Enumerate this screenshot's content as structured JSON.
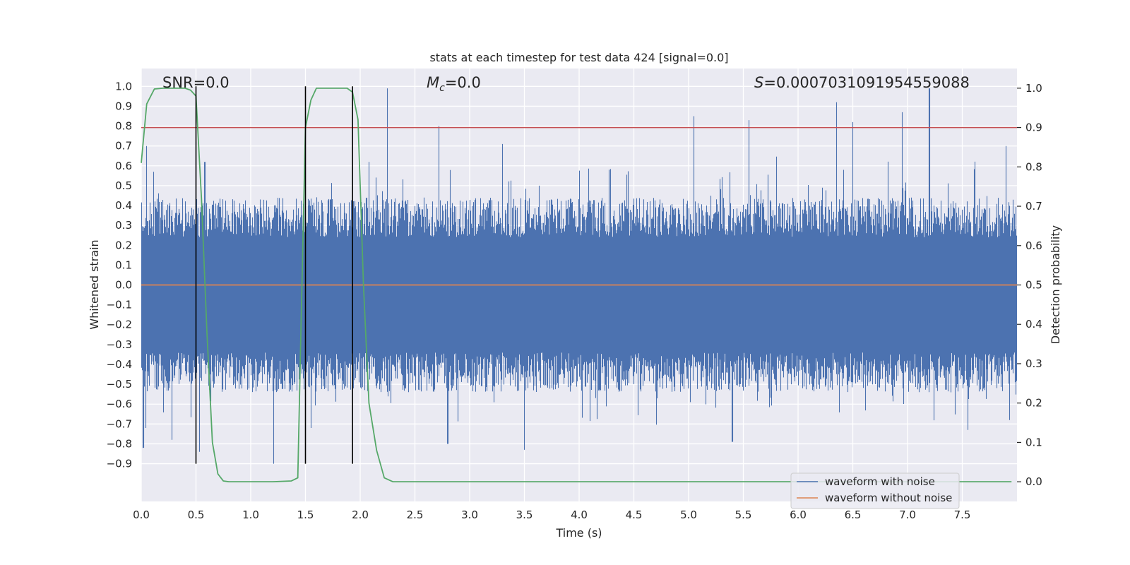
{
  "chart_data": {
    "type": "line",
    "title": "stats at each timestep for test data 424 [signal=0.0]",
    "xlabel": "Time (s)",
    "ylabel": "Whitened strain",
    "y2label": "Detection probability",
    "xlim": [
      0.0,
      8.0
    ],
    "ylim": [
      -1.09,
      1.09
    ],
    "y2lim": [
      -0.05,
      1.05
    ],
    "x_ticks": [
      "0.0",
      "0.5",
      "1.0",
      "1.5",
      "2.0",
      "2.5",
      "3.0",
      "3.5",
      "4.0",
      "4.5",
      "5.0",
      "5.5",
      "6.0",
      "6.5",
      "7.0",
      "7.5"
    ],
    "y_ticks": [
      "1.0",
      "0.9",
      "0.8",
      "0.7",
      "0.6",
      "0.5",
      "0.4",
      "0.3",
      "0.2",
      "0.1",
      "0.0",
      "-0.1",
      "-0.2",
      "-0.3",
      "-0.4",
      "-0.5",
      "-0.6",
      "-0.7",
      "-0.8",
      "-0.9"
    ],
    "y2_ticks": [
      "1.0",
      "0.9",
      "0.8",
      "0.7",
      "0.6",
      "0.5",
      "0.4",
      "0.3",
      "0.2",
      "0.1",
      "0.0"
    ],
    "grid": true,
    "legend_position": "bottom-right",
    "annotations": {
      "snr": "SNR=0.0",
      "mc_symbol": "M",
      "mc_sub": "c",
      "mc_value": "=0.0",
      "s_symbol": "S",
      "s_value": "=0.0007031091954559088"
    },
    "series": [
      {
        "name": "waveform with noise",
        "color": "#4c72b0",
        "kind": "noise",
        "envelope": {
          "core_upper": 0.44,
          "core_lower": -0.54,
          "peaks": [
            {
              "x": 0.02,
              "y": -0.82
            },
            {
              "x": 0.05,
              "y": 0.7
            },
            {
              "x": 0.28,
              "y": -0.78
            },
            {
              "x": 0.5,
              "y": 0.72
            },
            {
              "x": 0.53,
              "y": -0.84
            },
            {
              "x": 0.58,
              "y": 0.62
            },
            {
              "x": 1.21,
              "y": -0.9
            },
            {
              "x": 1.55,
              "y": -0.72
            },
            {
              "x": 2.08,
              "y": 0.62
            },
            {
              "x": 2.25,
              "y": 0.99
            },
            {
              "x": 2.72,
              "y": 0.8
            },
            {
              "x": 2.8,
              "y": -0.8
            },
            {
              "x": 3.3,
              "y": 0.71
            },
            {
              "x": 3.5,
              "y": -0.83
            },
            {
              "x": 5.05,
              "y": 0.85
            },
            {
              "x": 5.55,
              "y": 0.83
            },
            {
              "x": 5.4,
              "y": -0.79
            },
            {
              "x": 6.35,
              "y": 0.92
            },
            {
              "x": 6.5,
              "y": 0.82
            },
            {
              "x": 6.95,
              "y": 0.87
            },
            {
              "x": 7.2,
              "y": 0.99
            },
            {
              "x": 7.55,
              "y": -0.73
            },
            {
              "x": 7.9,
              "y": 0.7
            },
            {
              "x": 7.93,
              "y": -0.68
            }
          ]
        }
      },
      {
        "name": "waveform without noise",
        "color": "#dd8452",
        "x": [
          0.0,
          8.0
        ],
        "y": [
          0.0,
          0.0
        ]
      },
      {
        "name": "",
        "color": "#55a868",
        "axis": "right",
        "x": [
          0.0,
          0.05,
          0.12,
          0.2,
          0.3,
          0.4,
          0.45,
          0.5,
          0.55,
          0.6,
          0.65,
          0.7,
          0.75,
          0.8,
          1.0,
          1.2,
          1.37,
          1.43,
          1.46,
          1.5,
          1.55,
          1.6,
          1.7,
          1.8,
          1.88,
          1.93,
          1.98,
          2.03,
          2.08,
          2.15,
          2.22,
          2.3,
          2.5,
          3.0,
          4.0,
          5.0,
          6.0,
          7.0,
          7.95
        ],
        "y": [
          0.81,
          0.96,
          0.998,
          1.0,
          1.0,
          1.0,
          0.995,
          0.98,
          0.72,
          0.38,
          0.1,
          0.02,
          0.002,
          0.0,
          0.0,
          0.0,
          0.002,
          0.01,
          0.4,
          0.9,
          0.97,
          1.0,
          1.0,
          1.0,
          1.0,
          0.99,
          0.92,
          0.5,
          0.2,
          0.08,
          0.01,
          0.0,
          0.0,
          0.0,
          0.0,
          0.0,
          0.0,
          0.0,
          0.0
        ]
      }
    ],
    "threshold": {
      "value": 0.9,
      "axis": "right",
      "color": "#c44e52"
    },
    "event_markers": {
      "x": [
        0.5,
        1.5,
        1.93
      ],
      "ymin": -0.9,
      "ymax": 1.0,
      "color": "#000000"
    }
  }
}
